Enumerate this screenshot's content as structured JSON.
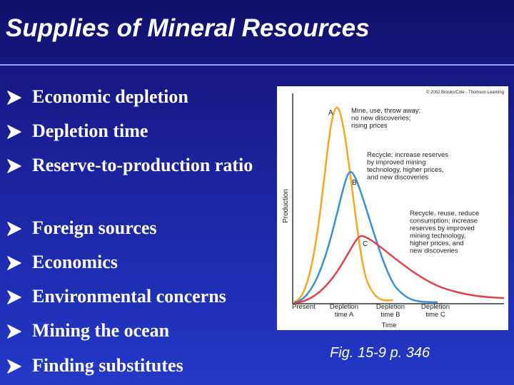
{
  "title": "Supplies of Mineral Resources",
  "bullets": [
    "Economic depletion",
    "Depletion time",
    "Reserve-to-production ratio",
    "Foreign sources",
    "Economics",
    "Environmental concerns",
    "Mining the ocean",
    "Finding substitutes"
  ],
  "figure": {
    "copyright": "© 2002 Brooks/Cole - Thomson Learning",
    "y_label": "Production",
    "x_label": "Time",
    "x_ticks": [
      [
        "Present"
      ],
      [
        "Depletion",
        "time A"
      ],
      [
        "Depletion",
        "time B"
      ],
      [
        "Depletion",
        "time C"
      ]
    ],
    "curves": [
      {
        "label": "A",
        "color": "#f5a623",
        "note": [
          "Mine, use, throw away;",
          "no new discoveries;",
          "rising prices"
        ]
      },
      {
        "label": "B",
        "color": "#3a8fd8",
        "note": [
          "Recycle; increase reserves",
          "by improved mining",
          "technology, higher prices,",
          "and new discoveries"
        ]
      },
      {
        "label": "C",
        "color": "#e0404a",
        "note": [
          "Recycle, reuse, reduce",
          "consumption; increase",
          "reserves by improved",
          "mining technology,",
          "higher prices, and",
          "new discoveries"
        ]
      }
    ]
  },
  "caption": "Fig. 15-9 p. 346"
}
